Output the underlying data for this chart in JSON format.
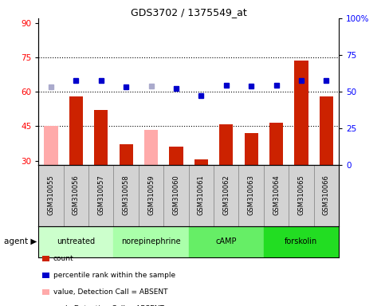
{
  "title": "GDS3702 / 1375549_at",
  "samples": [
    "GSM310055",
    "GSM310056",
    "GSM310057",
    "GSM310058",
    "GSM310059",
    "GSM310060",
    "GSM310061",
    "GSM310062",
    "GSM310063",
    "GSM310064",
    "GSM310065",
    "GSM310066"
  ],
  "bar_values": [
    null,
    58.0,
    52.0,
    37.0,
    null,
    36.0,
    30.5,
    46.0,
    42.0,
    46.5,
    73.5,
    58.0
  ],
  "bar_absent": [
    45.0,
    null,
    null,
    null,
    43.5,
    null,
    null,
    null,
    null,
    null,
    null,
    null
  ],
  "dot_values": [
    null,
    65.0,
    65.0,
    62.0,
    null,
    61.5,
    58.5,
    63.0,
    62.5,
    63.0,
    65.0,
    65.0
  ],
  "dot_absent": [
    62.0,
    null,
    null,
    null,
    62.5,
    null,
    null,
    null,
    null,
    null,
    null,
    null
  ],
  "bar_color": "#cc2200",
  "bar_absent_color": "#ffaaaa",
  "dot_color": "#0000cc",
  "dot_absent_color": "#aaaacc",
  "ylim": [
    28,
    92
  ],
  "yticks": [
    30,
    45,
    60,
    75,
    90
  ],
  "y2ticks": [
    0,
    25,
    50,
    75,
    100
  ],
  "hlines": [
    45,
    60,
    75
  ],
  "agent_groups": [
    {
      "label": "untreated",
      "color": "#ccffcc",
      "start": 0,
      "end": 2
    },
    {
      "label": "norepinephrine",
      "color": "#aaffaa",
      "start": 3,
      "end": 5
    },
    {
      "label": "cAMP",
      "color": "#66ee66",
      "start": 6,
      "end": 8
    },
    {
      "label": "forskolin",
      "color": "#22dd22",
      "start": 9,
      "end": 11
    }
  ],
  "legend_items": [
    {
      "color": "#cc2200",
      "label": "count"
    },
    {
      "color": "#0000cc",
      "label": "percentile rank within the sample"
    },
    {
      "color": "#ffaaaa",
      "label": "value, Detection Call = ABSENT"
    },
    {
      "color": "#aaaacc",
      "label": "rank, Detection Call = ABSENT"
    }
  ]
}
